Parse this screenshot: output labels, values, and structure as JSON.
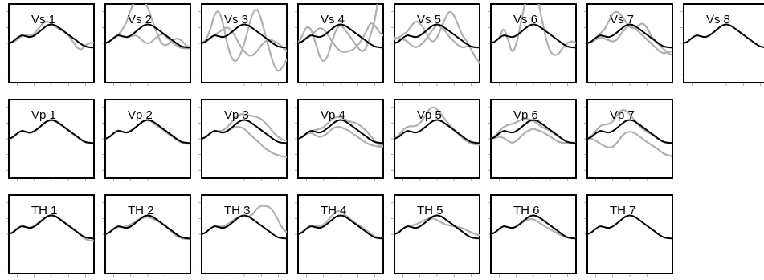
{
  "chart_data": {
    "type": "line",
    "x_range": [
      0,
      1
    ],
    "y_range": [
      -1,
      1
    ],
    "grid": false,
    "colors": {
      "reference": "#000000",
      "variant": "#b0b0b0",
      "frame": "#000000"
    },
    "reference": {
      "x": [
        0,
        0.05,
        0.1,
        0.15,
        0.2,
        0.25,
        0.3,
        0.35,
        0.4,
        0.45,
        0.5,
        0.55,
        0.6,
        0.65,
        0.7,
        0.75,
        0.8,
        0.85,
        0.9,
        0.95,
        1
      ],
      "y": [
        0,
        0.05,
        0.14,
        0.2,
        0.18,
        0.16,
        0.2,
        0.28,
        0.37,
        0.45,
        0.48,
        0.45,
        0.38,
        0.3,
        0.22,
        0.14,
        0.06,
        -0.02,
        -0.08,
        -0.1,
        -0.11
      ]
    },
    "panels": [
      {
        "title": "Vs 1",
        "variants": [
          [
            0,
            0.03,
            0.1,
            0.18,
            0.2,
            0.2,
            0.25,
            0.38,
            0.5,
            0.55,
            0.5,
            0.42,
            0.35,
            0.3,
            0.2,
            0.05,
            -0.1,
            -0.15,
            -0.05,
            0,
            0.02
          ]
        ]
      },
      {
        "title": "Vs 2",
        "variants": [
          [
            0,
            0.05,
            0.12,
            0.22,
            0.35,
            0.55,
            0.85,
            1.1,
            1.2,
            1.12,
            0.9,
            0.6,
            0.3,
            0.05,
            -0.05,
            0,
            0.08,
            0.12,
            0.06,
            -0.05,
            -0.1
          ],
          [
            0,
            0.05,
            0.14,
            0.2,
            0.18,
            0.15,
            0.18,
            0.2,
            0.15,
            0.05,
            0,
            0.05,
            0.15,
            0.22,
            0.2,
            0.1,
            0,
            -0.08,
            -0.12,
            -0.13,
            -0.13
          ]
        ]
      },
      {
        "title": "Vs 3",
        "variants": [
          [
            0,
            0.1,
            0.35,
            0.7,
            0.8,
            0.5,
            0.0,
            -0.35,
            -0.45,
            -0.3,
            0.0,
            0.4,
            0.75,
            0.85,
            0.6,
            0.2,
            -0.2,
            -0.55,
            -0.7,
            -0.6,
            -0.4
          ],
          [
            0,
            0.05,
            0.12,
            0.2,
            0.28,
            0.35,
            0.4,
            0.32,
            0.15,
            -0.05,
            -0.2,
            -0.3,
            -0.3,
            -0.2,
            -0.05,
            0.05,
            0.1,
            0.05,
            0,
            -0.1,
            -0.2
          ]
        ]
      },
      {
        "title": "Vs 4",
        "variants": [
          [
            0,
            0.2,
            0.4,
            0.35,
            0.05,
            -0.3,
            -0.45,
            -0.3,
            0.05,
            0.35,
            0.45,
            0.35,
            0.2,
            0.05,
            -0.1,
            -0.2,
            -0.1,
            0.2,
            0.6,
            1.2,
            1.6
          ],
          [
            0,
            0.05,
            0.12,
            0.2,
            0.3,
            0.38,
            0.35,
            0.22,
            0.05,
            -0.1,
            -0.2,
            -0.22,
            -0.2,
            -0.15,
            -0.05,
            0.1,
            0.3,
            0.5,
            0.45,
            0.3,
            0.2
          ]
        ]
      },
      {
        "title": "Vs 5",
        "variants": [
          [
            0.1,
            0.15,
            0.22,
            0.3,
            0.45,
            0.55,
            0.5,
            0.35,
            0.15,
            0.05,
            0.15,
            0.4,
            0.65,
            0.8,
            0.7,
            0.45,
            0.2,
            0.05,
            -0.15,
            -0.35,
            -0.5
          ],
          [
            0.15,
            0.12,
            0.1,
            0.05,
            -0.05,
            -0.1,
            -0.05,
            0.05,
            0.2,
            0.35,
            0.45,
            0.4,
            0.3,
            0.15,
            0.05,
            -0.05,
            -0.1,
            -0.08,
            -0.08,
            -0.1,
            -0.1
          ]
        ]
      },
      {
        "title": "Vs 6",
        "variants": [
          [
            0,
            0.05,
            0.15,
            0.35,
            0.1,
            -0.2,
            0.0,
            0.5,
            1.0,
            1.3,
            1.35,
            1.1,
            0.6,
            0.1,
            -0.2,
            -0.3,
            -0.25,
            -0.1,
            0.0,
            0.05,
            0.0
          ]
        ]
      },
      {
        "title": "Vs 7",
        "variants": [
          [
            0,
            0.05,
            0.14,
            0.25,
            0.35,
            0.55,
            0.75,
            0.8,
            0.7,
            0.55,
            0.42,
            0.38,
            0.45,
            0.5,
            0.4,
            0.2,
            0.05,
            -0.05,
            -0.15,
            -0.25,
            -0.3
          ],
          [
            0,
            0.03,
            0.1,
            0.15,
            0.12,
            0.08,
            0.05,
            0.1,
            0.25,
            0.38,
            0.45,
            0.4,
            0.3,
            0.2,
            0.1,
            0.0,
            -0.1,
            -0.2,
            -0.25,
            -0.22,
            -0.2
          ]
        ]
      },
      {
        "title": "Vs 8",
        "variants": []
      },
      {
        "title": "Vp 1",
        "variants": [
          [
            0,
            0.04,
            0.13,
            0.19,
            0.17,
            0.15,
            0.19,
            0.27,
            0.36,
            0.44,
            0.47,
            0.44,
            0.37,
            0.29,
            0.21,
            0.13,
            0.05,
            -0.03,
            -0.09,
            -0.11,
            -0.12
          ]
        ]
      },
      {
        "title": "Vp 2",
        "variants": [
          [
            0,
            0.05,
            0.15,
            0.21,
            0.19,
            0.17,
            0.21,
            0.29,
            0.38,
            0.45,
            0.47,
            0.43,
            0.35,
            0.27,
            0.19,
            0.11,
            0.04,
            -0.04,
            -0.1,
            -0.12,
            -0.13
          ]
        ]
      },
      {
        "title": "Vp 3",
        "variants": [
          [
            0,
            0.05,
            0.14,
            0.2,
            0.2,
            0.22,
            0.3,
            0.42,
            0.55,
            0.62,
            0.62,
            0.6,
            0.58,
            0.55,
            0.5,
            0.4,
            0.28,
            0.15,
            0.05,
            -0.02,
            -0.05
          ],
          [
            0,
            0.05,
            0.14,
            0.2,
            0.18,
            0.16,
            0.2,
            0.26,
            0.3,
            0.3,
            0.25,
            0.15,
            0.05,
            -0.05,
            -0.15,
            -0.25,
            -0.32,
            -0.38,
            -0.42,
            -0.45,
            -0.46
          ]
        ]
      },
      {
        "title": "Vp 4",
        "variants": [
          [
            0,
            0.05,
            0.14,
            0.2,
            0.22,
            0.25,
            0.3,
            0.4,
            0.5,
            0.55,
            0.55,
            0.5,
            0.45,
            0.42,
            0.38,
            0.3,
            0.2,
            0.08,
            -0.05,
            -0.15,
            -0.18
          ],
          [
            0,
            0.05,
            0.12,
            0.15,
            0.1,
            0.05,
            0.08,
            0.15,
            0.25,
            0.3,
            0.3,
            0.25,
            0.2,
            0.12,
            0.05,
            -0.03,
            -0.1,
            -0.15,
            -0.18,
            -0.2,
            -0.2
          ]
        ]
      },
      {
        "title": "Vp 5",
        "variants": [
          [
            0,
            0.1,
            0.22,
            0.3,
            0.32,
            0.33,
            0.4,
            0.55,
            0.72,
            0.8,
            0.75,
            0.62,
            0.48,
            0.35,
            0.24,
            0.12,
            0.02,
            -0.06,
            -0.12,
            -0.14,
            -0.15
          ]
        ]
      },
      {
        "title": "Vp 6",
        "variants": [
          [
            0,
            0.08,
            0.2,
            0.3,
            0.35,
            0.38,
            0.42,
            0.48,
            0.52,
            0.5,
            0.45,
            0.38,
            0.3,
            0.25,
            0.2,
            0.12,
            0.05,
            -0.02,
            -0.08,
            -0.1,
            -0.11
          ],
          [
            0,
            0.02,
            0.05,
            0.02,
            -0.05,
            -0.1,
            -0.05,
            0.05,
            0.15,
            0.22,
            0.25,
            0.22,
            0.18,
            0.12,
            0.05,
            -0.02,
            -0.08,
            -0.1,
            -0.1,
            -0.1,
            -0.1
          ]
        ]
      },
      {
        "title": "Vp 7",
        "variants": [
          [
            0,
            0.08,
            0.2,
            0.32,
            0.36,
            0.38,
            0.45,
            0.6,
            0.72,
            0.72,
            0.62,
            0.48,
            0.35,
            0.25,
            0.18,
            0.12,
            0.05,
            -0.02,
            -0.08,
            -0.1,
            -0.1
          ],
          [
            0,
            0.0,
            -0.05,
            -0.12,
            -0.18,
            -0.22,
            -0.2,
            -0.1,
            0.05,
            0.15,
            0.18,
            0.15,
            0.08,
            0.0,
            -0.08,
            -0.15,
            -0.22,
            -0.3,
            -0.38,
            -0.42,
            -0.45
          ]
        ]
      },
      {
        "title": "TH 1",
        "variants": [
          [
            0,
            0.06,
            0.15,
            0.21,
            0.19,
            0.17,
            0.22,
            0.3,
            0.38,
            0.46,
            0.49,
            0.46,
            0.39,
            0.31,
            0.23,
            0.15,
            0.06,
            -0.04,
            -0.12,
            -0.16,
            -0.17
          ]
        ]
      },
      {
        "title": "TH 2",
        "variants": [
          [
            0,
            0.05,
            0.13,
            0.18,
            0.18,
            0.2,
            0.25,
            0.32,
            0.38,
            0.42,
            0.44,
            0.4,
            0.35,
            0.3,
            0.22,
            0.12,
            0.02,
            -0.06,
            -0.1,
            -0.12,
            -0.12
          ]
        ]
      },
      {
        "title": "TH 3",
        "variants": [
          [
            0,
            0.05,
            0.14,
            0.2,
            0.2,
            0.2,
            0.25,
            0.32,
            0.4,
            0.45,
            0.45,
            0.45,
            0.52,
            0.65,
            0.72,
            0.72,
            0.68,
            0.55,
            0.35,
            0.15,
            0.05
          ]
        ]
      },
      {
        "title": "TH 4",
        "variants": [
          [
            0,
            0.06,
            0.16,
            0.22,
            0.22,
            0.2,
            0.25,
            0.35,
            0.48,
            0.58,
            0.58,
            0.5,
            0.4,
            0.32,
            0.25,
            0.18,
            0.1,
            0.02,
            -0.05,
            -0.08,
            -0.1
          ]
        ]
      },
      {
        "title": "TH 5",
        "variants": [
          [
            0,
            0.05,
            0.14,
            0.2,
            0.22,
            0.25,
            0.3,
            0.36,
            0.4,
            0.4,
            0.36,
            0.3,
            0.25,
            0.22,
            0.2,
            0.18,
            0.15,
            0.1,
            0.05,
            0.0,
            -0.02
          ]
        ]
      },
      {
        "title": "TH 6",
        "variants": [
          [
            0,
            0.05,
            0.14,
            0.2,
            0.18,
            0.16,
            0.2,
            0.27,
            0.34,
            0.38,
            0.38,
            0.32,
            0.25,
            0.18,
            0.12,
            0.06,
            0.0,
            -0.05,
            -0.08,
            -0.1,
            -0.1
          ]
        ]
      },
      {
        "title": "TH 7",
        "variants": []
      }
    ]
  }
}
